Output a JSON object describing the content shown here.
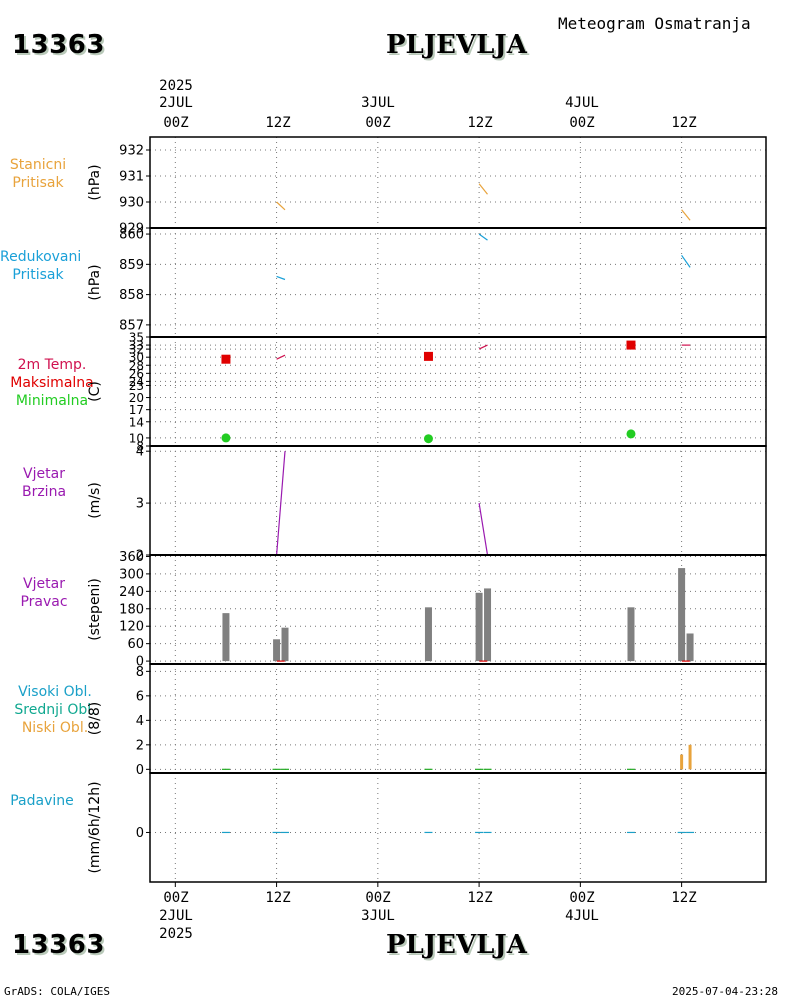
{
  "header": {
    "station_id": "13363",
    "station_name": "PLJEVLJA",
    "product_title": "Meteogram Osmatranja"
  },
  "footer": {
    "left_credit": "GrADS: COLA/IGES",
    "timestamp": "2025-07-04-23:28"
  },
  "time_axis": {
    "year": "2025",
    "ticks": [
      {
        "hour": 0,
        "label": "00Z",
        "date": "2JUL"
      },
      {
        "hour": 12,
        "label": "12Z",
        "date": ""
      },
      {
        "hour": 24,
        "label": "00Z",
        "date": "3JUL"
      },
      {
        "hour": 36,
        "label": "12Z",
        "date": ""
      },
      {
        "hour": 48,
        "label": "00Z",
        "date": "4JUL"
      },
      {
        "hour": 60,
        "label": "12Z",
        "date": ""
      }
    ],
    "range_hours": [
      -3,
      70
    ]
  },
  "panels": [
    {
      "key": "pressure_station",
      "labels": [
        "Stanicni",
        "Pritisak"
      ],
      "label_colors": [
        "#e8a33c",
        "#e8a33c"
      ],
      "unit": "(hPa)"
    },
    {
      "key": "pressure_reduced",
      "labels": [
        "Redukovani",
        "Pritisak"
      ],
      "label_colors": [
        "#1aa0d8",
        "#1aa0d8"
      ],
      "unit": "(hPa)"
    },
    {
      "key": "temperature",
      "labels": [
        "2m Temp.",
        "Maksimalna",
        "Minimalna"
      ],
      "label_colors": [
        "#d0114f",
        "#e00000",
        "#22cc22"
      ],
      "unit": "(C)"
    },
    {
      "key": "wind_speed",
      "labels": [
        "Vjetar",
        "Brzina"
      ],
      "label_colors": [
        "#9a1ab0",
        "#9a1ab0"
      ],
      "unit": "(m/s)"
    },
    {
      "key": "wind_dir",
      "labels": [
        "Vjetar",
        "Pravac"
      ],
      "label_colors": [
        "#9a1ab0",
        "#9a1ab0"
      ],
      "unit": "(stepeni)"
    },
    {
      "key": "clouds",
      "labels": [
        "Visoki Obl.",
        "Srednji Obl.",
        "Niski Obl."
      ],
      "label_colors": [
        "#1aa0c8",
        "#10a890",
        "#e8a33c"
      ],
      "unit": "(8/8)"
    },
    {
      "key": "precip",
      "labels": [
        "Padavine"
      ],
      "label_colors": [
        "#1aa0c8"
      ],
      "unit": "(mm/6h/12h)"
    }
  ],
  "chart_data": [
    {
      "type": "line",
      "title": "Stanicni Pritisak",
      "ylabel": "(hPa)",
      "color": "#e8a33c",
      "ylim": [
        929,
        932.5
      ],
      "yticks": [
        {
          "v": 929,
          "t": "929"
        },
        {
          "v": 930,
          "t": "930"
        },
        {
          "v": 931,
          "t": "931"
        },
        {
          "v": 932,
          "t": "932"
        }
      ],
      "segments": [
        [
          [
            12,
            930.0
          ],
          [
            13,
            929.7
          ]
        ],
        [
          [
            36,
            930.7
          ],
          [
            37,
            930.3
          ]
        ],
        [
          [
            60,
            929.7
          ],
          [
            61,
            929.3
          ]
        ]
      ]
    },
    {
      "type": "line",
      "title": "Redukovani Pritisak",
      "ylabel": "(hPa)",
      "color": "#1aa0d8",
      "ylim": [
        856.6,
        860.2
      ],
      "yticks": [
        {
          "v": 857,
          "t": "857"
        },
        {
          "v": 858,
          "t": "858"
        },
        {
          "v": 859,
          "t": "859"
        },
        {
          "v": 860,
          "t": "860"
        }
      ],
      "segments": [
        [
          [
            12,
            858.6
          ],
          [
            13,
            858.5
          ]
        ],
        [
          [
            36,
            860.0
          ],
          [
            37,
            859.8
          ]
        ],
        [
          [
            60,
            859.3
          ],
          [
            61,
            858.9
          ]
        ]
      ]
    },
    {
      "type": "line+points",
      "title": "2m Temp. / Maksimalna / Minimalna",
      "ylabel": "(C)",
      "ylim": [
        8,
        35
      ],
      "yticks": [
        {
          "v": 8,
          "t": "8"
        },
        {
          "v": 10,
          "t": "10"
        },
        {
          "v": 14,
          "t": "14"
        },
        {
          "v": 17,
          "t": "17"
        },
        {
          "v": 20,
          "t": "20"
        },
        {
          "v": 23,
          "t": "23"
        },
        {
          "v": 24,
          "t": "24"
        },
        {
          "v": 26,
          "t": "26"
        },
        {
          "v": 28,
          "t": "28"
        },
        {
          "v": 30,
          "t": "30"
        },
        {
          "v": 32,
          "t": "32"
        },
        {
          "v": 33,
          "t": "33"
        },
        {
          "v": 35,
          "t": "35"
        }
      ],
      "temp_color": "#d0114f",
      "temp_segments": [
        [
          [
            12,
            29.5
          ],
          [
            13,
            30.5
          ]
        ],
        [
          [
            36,
            32
          ],
          [
            37,
            33
          ]
        ],
        [
          [
            60,
            33
          ],
          [
            61,
            33
          ]
        ]
      ],
      "max_color": "#e00000",
      "max_points": [
        {
          "x": 6,
          "y": 29.5
        },
        {
          "x": 30,
          "y": 30.2
        },
        {
          "x": 54,
          "y": 33.0
        }
      ],
      "min_color": "#22cc22",
      "min_points": [
        {
          "x": 6,
          "y": 10
        },
        {
          "x": 30,
          "y": 9.8
        },
        {
          "x": 54,
          "y": 11
        }
      ]
    },
    {
      "type": "line",
      "title": "Vjetar Brzina",
      "ylabel": "(m/s)",
      "color": "#9a1ab0",
      "ylim": [
        2,
        4.1
      ],
      "yticks": [
        {
          "v": 2,
          "t": "2"
        },
        {
          "v": 3,
          "t": "3"
        },
        {
          "v": 4,
          "t": "4"
        }
      ],
      "segments": [
        [
          [
            12,
            2
          ],
          [
            13,
            4
          ]
        ],
        [
          [
            36,
            3
          ],
          [
            37,
            2
          ]
        ],
        [
          [
            60,
            2
          ],
          [
            61,
            2
          ]
        ]
      ]
    },
    {
      "type": "bar",
      "title": "Vjetar Pravac",
      "ylabel": "(stepeni)",
      "color": "#808080",
      "ylim": [
        -10,
        365
      ],
      "yticks": [
        {
          "v": 0,
          "t": "0"
        },
        {
          "v": 60,
          "t": "60"
        },
        {
          "v": 120,
          "t": "120"
        },
        {
          "v": 180,
          "t": "180"
        },
        {
          "v": 240,
          "t": "240"
        },
        {
          "v": 300,
          "t": "300"
        },
        {
          "v": 360,
          "t": "360"
        }
      ],
      "bars": [
        {
          "x": 6,
          "v": 165
        },
        {
          "x": 12,
          "v": 75
        },
        {
          "x": 13,
          "v": 115
        },
        {
          "x": 30,
          "v": 185
        },
        {
          "x": 36,
          "v": 235
        },
        {
          "x": 37,
          "v": 250
        },
        {
          "x": 54,
          "v": 185
        },
        {
          "x": 60,
          "v": 320
        },
        {
          "x": 61,
          "v": 95
        }
      ],
      "marker_color": "#e00000",
      "marker_points": [
        {
          "x": 12.5,
          "v": 0
        },
        {
          "x": 36.5,
          "v": 0
        },
        {
          "x": 60.5,
          "v": 0
        }
      ]
    },
    {
      "type": "bar",
      "title": "Visoki / Srednji / Niski Obl.",
      "ylabel": "(8/8)",
      "ylim": [
        -0.3,
        8.6
      ],
      "yticks": [
        {
          "v": 0,
          "t": "0"
        },
        {
          "v": 2,
          "t": "2"
        },
        {
          "v": 4,
          "t": "4"
        },
        {
          "v": 6,
          "t": "6"
        },
        {
          "v": 8,
          "t": "8"
        }
      ],
      "low_color": "#e8a33c",
      "low_bars": [
        {
          "x": 60,
          "v": 1.2
        },
        {
          "x": 61,
          "v": 2
        }
      ],
      "trace_color": "#22aa22",
      "trace_x": [
        6,
        12,
        13,
        30,
        36,
        37,
        54
      ]
    },
    {
      "type": "bar",
      "title": "Padavine",
      "ylabel": "(mm/6h/12h)",
      "color": "#1aa0c8",
      "ylim": [
        -4,
        4.8
      ],
      "yticks": [
        {
          "v": 0,
          "t": "0"
        }
      ],
      "trace_x": [
        6,
        12,
        13,
        30,
        36,
        37,
        54,
        60,
        61
      ]
    }
  ]
}
